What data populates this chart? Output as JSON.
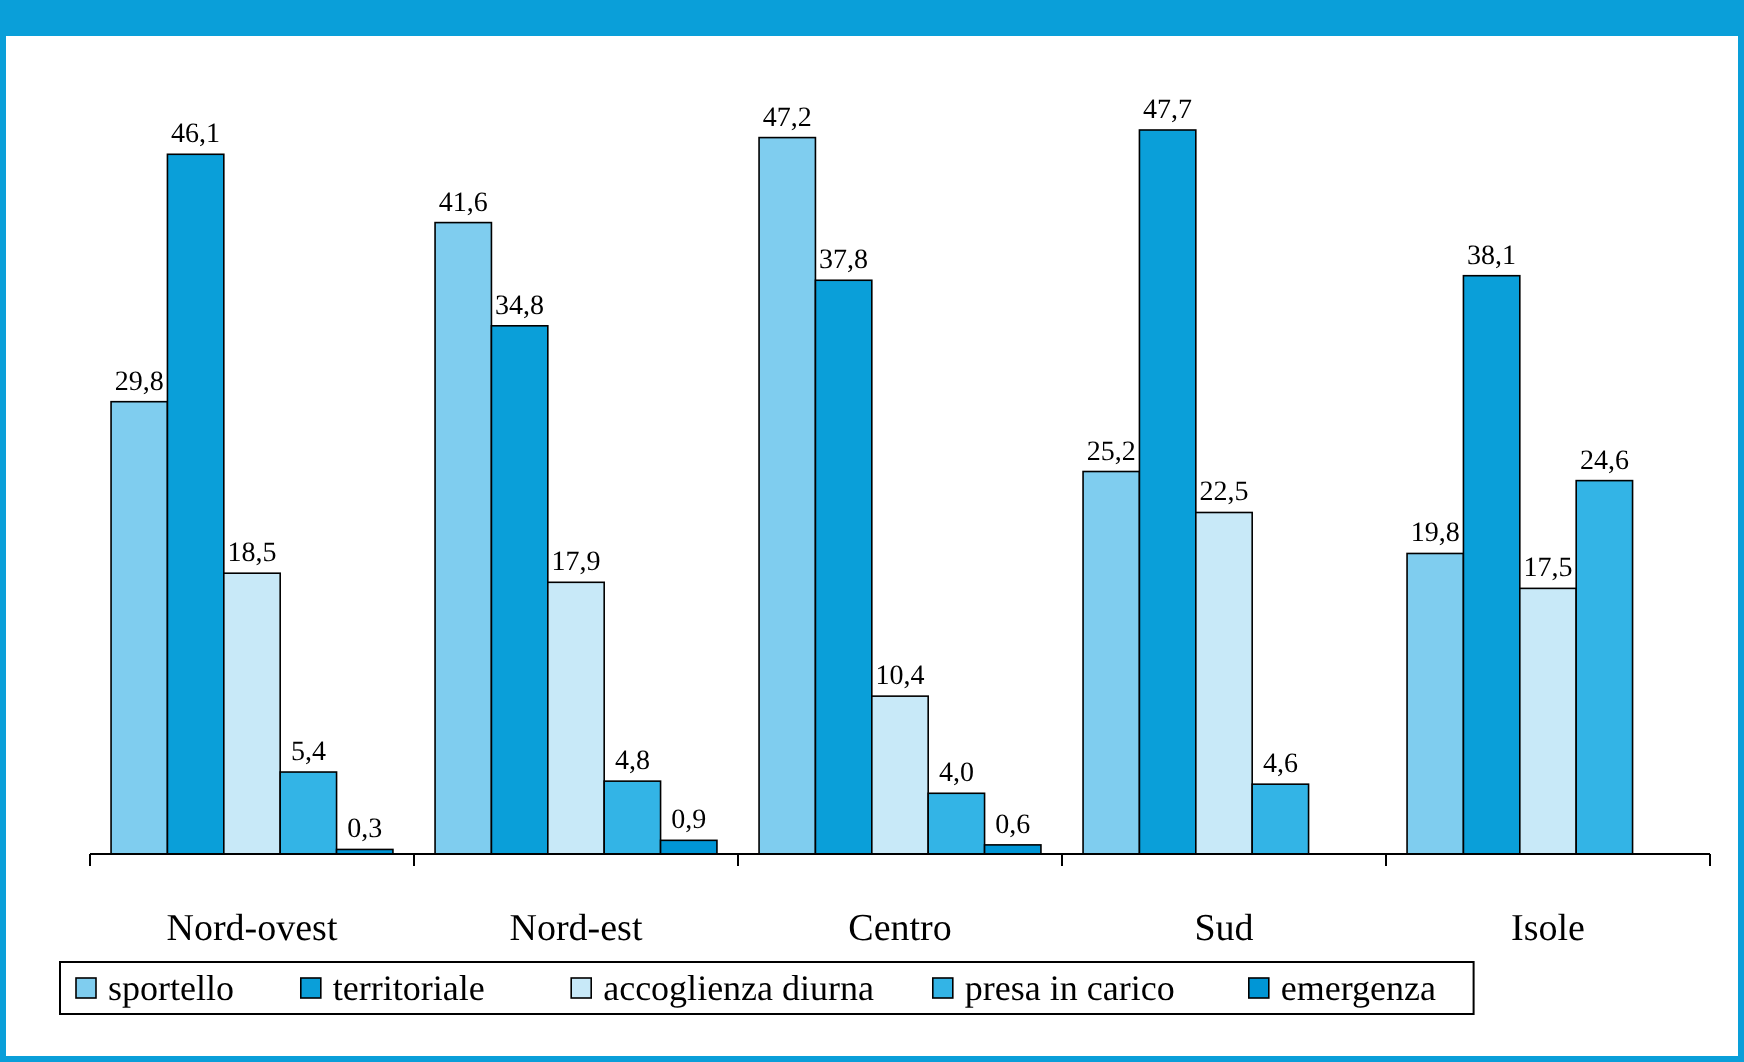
{
  "chart_data": {
    "type": "bar",
    "categories": [
      "Nord-ovest",
      "Nord-est",
      "Centro",
      "Sud",
      "Isole"
    ],
    "series": [
      {
        "name": "sportello",
        "color": "#7fcdef",
        "values": [
          29.8,
          41.6,
          47.2,
          25.2,
          19.8
        ],
        "value_labels": [
          "29,8",
          "41,6",
          "47,2",
          "25,2",
          "19,8"
        ]
      },
      {
        "name": "territoriale",
        "color": "#0a9fd9",
        "values": [
          46.1,
          34.8,
          37.8,
          47.7,
          38.1
        ],
        "value_labels": [
          "46,1",
          "34,8",
          "37,8",
          "47,7",
          "38,1"
        ]
      },
      {
        "name": "accoglienza diurna",
        "color": "#c8e9f8",
        "values": [
          18.5,
          17.9,
          10.4,
          22.5,
          17.5
        ],
        "value_labels": [
          "18,5",
          "17,9",
          "10,4",
          "22,5",
          "17,5"
        ]
      },
      {
        "name": "presa in carico",
        "color": "#33b4e6",
        "values": [
          5.4,
          4.8,
          4.0,
          4.6,
          24.6
        ],
        "value_labels": [
          "5,4",
          "4,8",
          "4,0",
          "4,6",
          "24,6"
        ]
      },
      {
        "name": "emergenza",
        "color": "#0096d6",
        "values": [
          0.3,
          0.9,
          0.6,
          null,
          null
        ],
        "value_labels": [
          "0,3",
          "0,9",
          "0,6",
          null,
          null
        ]
      }
    ],
    "legend": "bottom"
  }
}
